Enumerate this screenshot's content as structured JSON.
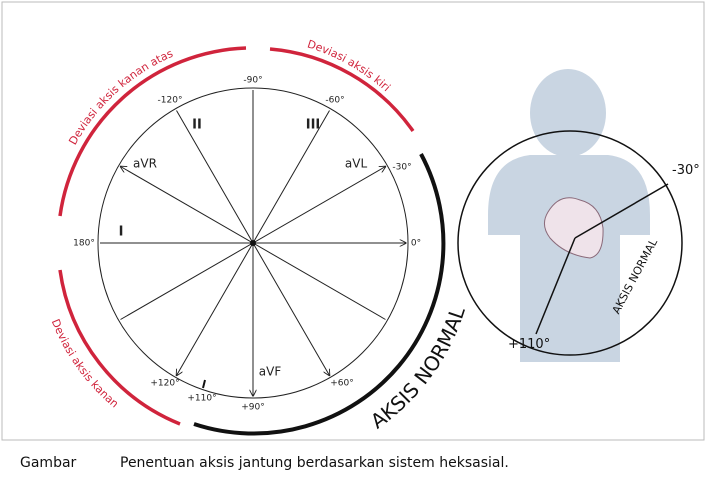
{
  "diagram": {
    "angles": [
      "-90°",
      "-120°",
      "-60°",
      "-30°",
      "0°",
      "180°",
      "+120°",
      "+90°",
      "+60°",
      "+110°"
    ],
    "leads": [
      "aVR",
      "aVL",
      "aVF",
      "I",
      "II",
      "III"
    ],
    "arcs": [
      "Deviasi aksis kanan atas",
      "Deviasi aksis kiri",
      "Deviasi aksis kanan",
      "AKSIS NORMAL"
    ],
    "inset": {
      "axis_minus": "-30°",
      "axis_plus": "+110°",
      "label": "AKSIS NORMAL"
    }
  },
  "caption": {
    "label": "Gambar",
    "text": "Penentuan aksis jantung berdasarkan sistem heksasial."
  }
}
